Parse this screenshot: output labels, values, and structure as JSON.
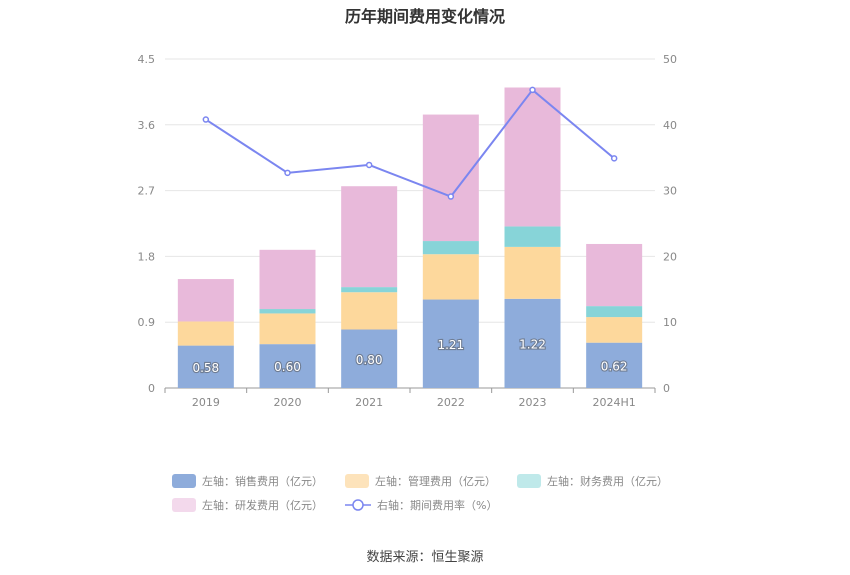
{
  "chart_data": {
    "type": "bar",
    "title": "历年期间费用变化情况",
    "categories": [
      "2019",
      "2020",
      "2021",
      "2022",
      "2023",
      "2024H1"
    ],
    "y_left": {
      "min": 0,
      "max": 4.5,
      "ticks": [
        "0",
        "0.9",
        "1.8",
        "2.7",
        "3.6",
        "4.5"
      ]
    },
    "y_right": {
      "min": 0,
      "max": 50,
      "ticks": [
        "0",
        "10",
        "20",
        "30",
        "40",
        "50"
      ]
    },
    "stacked": true,
    "series": [
      {
        "name": "左轴：销售费用（亿元）",
        "axis": "left",
        "color": "#8eacdb",
        "values": [
          0.58,
          0.6,
          0.8,
          1.21,
          1.22,
          0.62
        ],
        "labels": [
          "0.58",
          "0.60",
          "0.80",
          "1.21",
          "1.22",
          "0.62"
        ]
      },
      {
        "name": "左轴：管理费用（亿元）",
        "axis": "left",
        "color": "#fdd89c",
        "values": [
          0.33,
          0.42,
          0.51,
          0.62,
          0.71,
          0.35
        ]
      },
      {
        "name": "左轴：财务费用（亿元）",
        "axis": "left",
        "color": "#87d4d8",
        "values": [
          0.0,
          0.06,
          0.07,
          0.18,
          0.28,
          0.15
        ]
      },
      {
        "name": "左轴：研发费用（亿元）",
        "axis": "left",
        "color": "#e8b9da",
        "values": [
          0.58,
          0.81,
          1.38,
          1.73,
          1.9,
          0.85
        ]
      }
    ],
    "line": {
      "name": "右轴：期间费用率（%）",
      "axis": "right",
      "color": "#7b86f0",
      "values": [
        40.8,
        32.7,
        33.9,
        29.1,
        45.3,
        34.9
      ]
    },
    "legend_colors": [
      "#8eacdb",
      "#fde3bb",
      "#bfe9ea",
      "#f3d9ec"
    ],
    "legend_placement": "bottom",
    "grid": true,
    "source": "数据来源：恒生聚源"
  }
}
